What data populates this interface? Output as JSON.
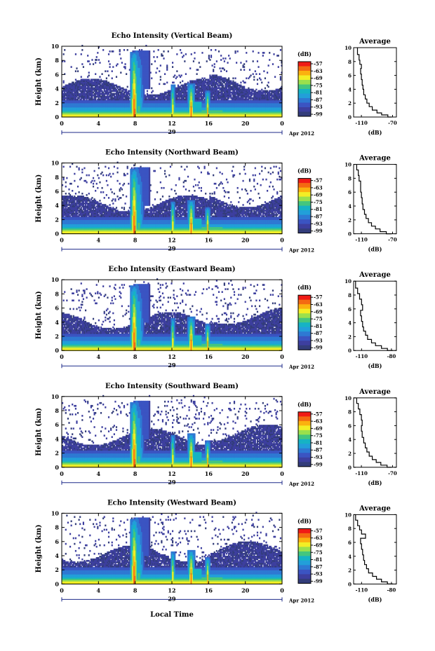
{
  "page": {
    "xlabel": "Local Time"
  },
  "colorbar": {
    "unit_label": "(dB)",
    "ticks": [
      "-57",
      "-63",
      "-69",
      "-75",
      "-81",
      "-87",
      "-93",
      "-99"
    ],
    "colors": [
      "#f01b16",
      "#f46a12",
      "#fbb10f",
      "#f3ee25",
      "#9be04c",
      "#44c67e",
      "#16b3c4",
      "#229fd9",
      "#2e79d3",
      "#3b54c2",
      "#3d3f9f",
      "#333d7a"
    ]
  },
  "chart_data": [
    {
      "type": "heatmap",
      "title": "Echo Intensity (Vertical Beam)",
      "ylabel": "Height (km)",
      "x_ticks": [
        "0",
        "4",
        "8",
        "12",
        "16",
        "20",
        "0"
      ],
      "xlim": [
        0,
        24
      ],
      "ylim": [
        0,
        10
      ],
      "date_marker": "29",
      "date_suffix": "Apr 2012",
      "average": {
        "title": "Average",
        "xlabel": "(dB)",
        "x_ticks": [
          "-110",
          "-70"
        ],
        "y_ticks": [
          "0",
          "2",
          "4",
          "6",
          "8",
          "10"
        ],
        "xlim": [
          -120,
          -65
        ],
        "profile": [
          [
            -71,
            0
          ],
          [
            -76,
            0.3
          ],
          [
            -84,
            0.6
          ],
          [
            -90,
            1
          ],
          [
            -96,
            1.5
          ],
          [
            -100,
            2
          ],
          [
            -103,
            2.6
          ],
          [
            -105,
            3.2
          ],
          [
            -107,
            4
          ],
          [
            -108,
            4.6
          ],
          [
            -109,
            5.4
          ],
          [
            -110,
            6.2
          ],
          [
            -111,
            7
          ],
          [
            -110,
            7.6
          ],
          [
            -112,
            8.2
          ],
          [
            -113,
            9
          ],
          [
            -115,
            10
          ]
        ]
      }
    },
    {
      "type": "heatmap",
      "title": "Echo Intensity (Northward Beam)",
      "ylabel": "Height (km)",
      "x_ticks": [
        "0",
        "4",
        "8",
        "12",
        "16",
        "20",
        "0"
      ],
      "xlim": [
        0,
        24
      ],
      "ylim": [
        0,
        10
      ],
      "date_marker": "29",
      "date_suffix": "Apr 2012",
      "average": {
        "title": "Average",
        "xlabel": "(dB)",
        "x_ticks": [
          "-110",
          "-70"
        ],
        "y_ticks": [
          "0",
          "2",
          "4",
          "6",
          "8",
          "10"
        ],
        "xlim": [
          -120,
          -65
        ],
        "profile": [
          [
            -71,
            0
          ],
          [
            -78,
            0.3
          ],
          [
            -86,
            0.7
          ],
          [
            -92,
            1.1
          ],
          [
            -97,
            1.6
          ],
          [
            -101,
            2.2
          ],
          [
            -104,
            2.8
          ],
          [
            -106,
            3.5
          ],
          [
            -108,
            4.3
          ],
          [
            -109,
            5.2
          ],
          [
            -110,
            6
          ],
          [
            -111,
            6.8
          ],
          [
            -111,
            7.6
          ],
          [
            -113,
            8.4
          ],
          [
            -114,
            9.2
          ],
          [
            -116,
            10
          ]
        ]
      }
    },
    {
      "type": "heatmap",
      "title": "Echo Intensity (Eastward Beam)",
      "ylabel": "Height (km)",
      "x_ticks": [
        "0",
        "4",
        "8",
        "12",
        "16",
        "20",
        "0"
      ],
      "xlim": [
        0,
        24
      ],
      "ylim": [
        0,
        10
      ],
      "date_marker": "29",
      "date_suffix": "Apr 2012",
      "average": {
        "title": "Average",
        "xlabel": "(dB)",
        "x_ticks": [
          "-110",
          "-80"
        ],
        "y_ticks": [
          "0",
          "2",
          "4",
          "6",
          "8",
          "10"
        ],
        "xlim": [
          -118,
          -75
        ],
        "profile": [
          [
            -78,
            0
          ],
          [
            -84,
            0.3
          ],
          [
            -90,
            0.7
          ],
          [
            -96,
            1.1
          ],
          [
            -100,
            1.6
          ],
          [
            -104,
            2.2
          ],
          [
            -106,
            2.8
          ],
          [
            -108,
            3.4
          ],
          [
            -109,
            4.2
          ],
          [
            -110,
            5
          ],
          [
            -111,
            5.8
          ],
          [
            -109,
            6.6
          ],
          [
            -110,
            7.4
          ],
          [
            -112,
            8.2
          ],
          [
            -114,
            9
          ],
          [
            -116,
            10
          ]
        ]
      }
    },
    {
      "type": "heatmap",
      "title": "Echo Intensity (Southward Beam)",
      "ylabel": "Height (km)",
      "x_ticks": [
        "0",
        "4",
        "8",
        "12",
        "16",
        "20",
        "0"
      ],
      "xlim": [
        0,
        24
      ],
      "ylim": [
        0,
        10
      ],
      "date_marker": "29",
      "date_suffix": "Apr 2012",
      "average": {
        "title": "Average",
        "xlabel": "(dB)",
        "x_ticks": [
          "-110",
          "-70"
        ],
        "y_ticks": [
          "0",
          "2",
          "4",
          "6",
          "8",
          "10"
        ],
        "xlim": [
          -120,
          -65
        ],
        "profile": [
          [
            -71,
            0
          ],
          [
            -77,
            0.3
          ],
          [
            -85,
            0.7
          ],
          [
            -91,
            1.1
          ],
          [
            -96,
            1.6
          ],
          [
            -100,
            2.2
          ],
          [
            -103,
            2.8
          ],
          [
            -105,
            3.5
          ],
          [
            -107,
            4.3
          ],
          [
            -109,
            5.2
          ],
          [
            -110,
            6
          ],
          [
            -109,
            6.8
          ],
          [
            -110,
            7.6
          ],
          [
            -112,
            8.4
          ],
          [
            -114,
            9.2
          ],
          [
            -116,
            10
          ]
        ]
      }
    },
    {
      "type": "heatmap",
      "title": "Echo Intensity (Westward Beam)",
      "ylabel": "Height (km)",
      "x_ticks": [
        "0",
        "4",
        "8",
        "12",
        "16",
        "20",
        "0"
      ],
      "xlim": [
        0,
        24
      ],
      "ylim": [
        0,
        10
      ],
      "date_marker": "29",
      "date_suffix": "Apr 2012",
      "average": {
        "title": "Average",
        "xlabel": "(dB)",
        "x_ticks": [
          "-110",
          "-80"
        ],
        "y_ticks": [
          "0",
          "2",
          "4",
          "6",
          "8",
          "10"
        ],
        "xlim": [
          -118,
          -75
        ],
        "profile": [
          [
            -78,
            0
          ],
          [
            -84,
            0.3
          ],
          [
            -90,
            0.7
          ],
          [
            -95,
            1.1
          ],
          [
            -99,
            1.6
          ],
          [
            -103,
            2.2
          ],
          [
            -105,
            2.8
          ],
          [
            -107,
            3.4
          ],
          [
            -108,
            4.2
          ],
          [
            -109,
            5
          ],
          [
            -110,
            5.8
          ],
          [
            -111,
            6.6
          ],
          [
            -106,
            7.2
          ],
          [
            -110,
            7.8
          ],
          [
            -112,
            8.4
          ],
          [
            -114,
            9.2
          ],
          [
            -116,
            10
          ]
        ]
      }
    }
  ]
}
